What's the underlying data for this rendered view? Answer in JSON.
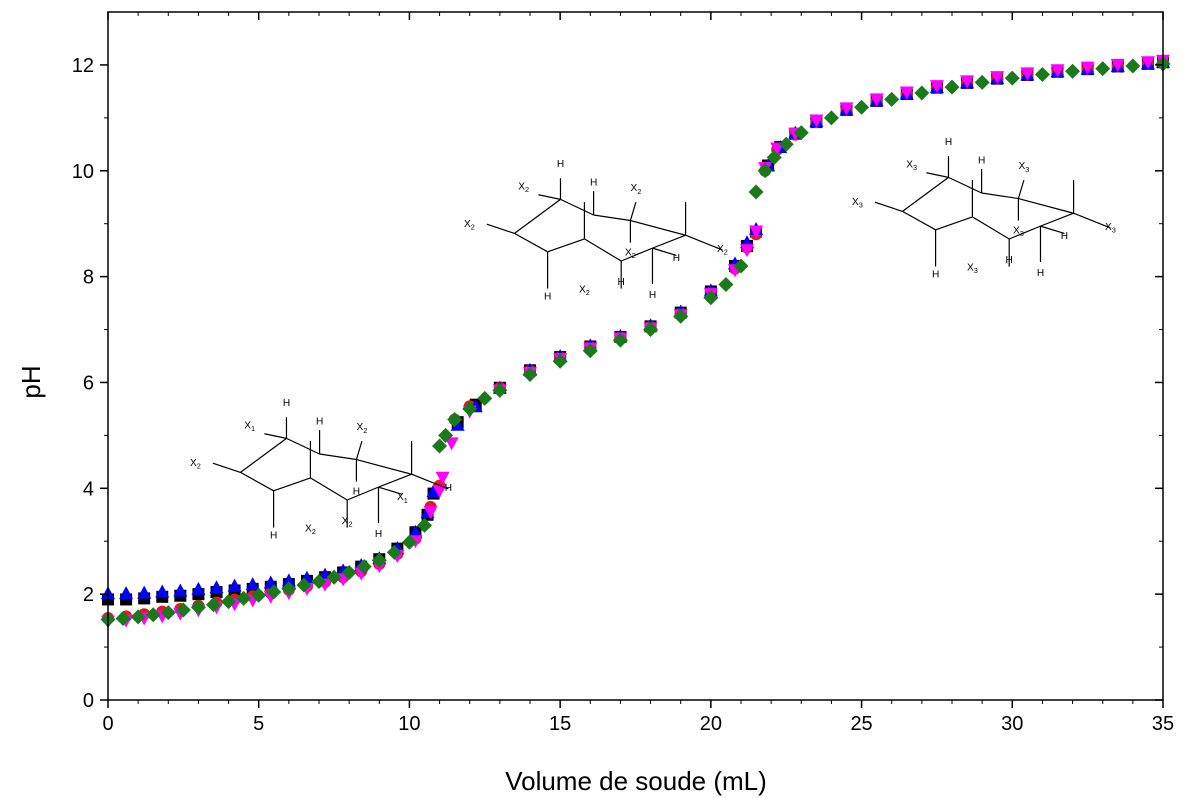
{
  "chart_data": {
    "type": "scatter",
    "xlabel": "Volume de soude (mL)",
    "ylabel": "pH",
    "xlim": [
      0,
      35
    ],
    "ylim": [
      0,
      13
    ],
    "x_ticks": [
      "0",
      "5",
      "10",
      "15",
      "20",
      "25",
      "30",
      "35"
    ],
    "y_ticks": [
      "0",
      "2",
      "4",
      "6",
      "8",
      "10",
      "12"
    ],
    "legend": "none",
    "grid": false,
    "series": [
      {
        "marker": "square",
        "color": "#000000",
        "x": [
          0,
          0.6,
          1.2,
          1.8,
          2.4,
          3,
          3.6,
          4.2,
          4.8,
          5.4,
          6,
          6.6,
          7.2,
          7.8,
          8.4,
          9,
          9.6,
          10.2,
          10.6,
          10.8,
          11.6,
          12.2,
          13,
          14,
          15,
          16,
          17,
          18,
          19,
          20,
          20.8,
          21.2,
          21.5,
          21.9,
          22.3,
          22.8,
          23.5,
          24.5,
          25.5,
          26.5,
          27.5,
          28.5,
          29.5,
          30.5,
          31.5,
          32.5,
          33.5,
          34.5,
          35
        ],
        "y": [
          1.9,
          1.9,
          1.92,
          1.95,
          1.97,
          2.0,
          2.04,
          2.07,
          2.1,
          2.14,
          2.19,
          2.25,
          2.32,
          2.41,
          2.52,
          2.66,
          2.86,
          3.17,
          3.5,
          3.9,
          5.25,
          5.58,
          5.9,
          6.23,
          6.48,
          6.68,
          6.86,
          7.06,
          7.32,
          7.72,
          8.2,
          8.58,
          8.85,
          10.1,
          10.45,
          10.7,
          10.92,
          11.15,
          11.32,
          11.45,
          11.57,
          11.66,
          11.74,
          11.81,
          11.87,
          11.92,
          11.97,
          12.02,
          12.05
        ]
      },
      {
        "marker": "circle",
        "color": "#e31a1c",
        "x": [
          0,
          0.6,
          1.2,
          1.8,
          2.4,
          3,
          3.6,
          4.2,
          4.8,
          5.4,
          6,
          6.6,
          7.2,
          7.8,
          8.4,
          9,
          9.6,
          10.2,
          10.7,
          11,
          11.5,
          12,
          13,
          14,
          15,
          16,
          17,
          18,
          19,
          20,
          20.8,
          21.2,
          21.5,
          21.8,
          22.2,
          22.8,
          23.5,
          24.5,
          25.5,
          26.5,
          27.5,
          28.5,
          29.5,
          30.5,
          31.5,
          32.5,
          33.5,
          34.5,
          35
        ],
        "y": [
          1.55,
          1.58,
          1.62,
          1.67,
          1.72,
          1.78,
          1.84,
          1.9,
          1.96,
          2.02,
          2.08,
          2.15,
          2.23,
          2.32,
          2.43,
          2.57,
          2.76,
          3.05,
          3.65,
          4.05,
          5.3,
          5.55,
          5.9,
          6.22,
          6.47,
          6.67,
          6.85,
          7.05,
          7.3,
          7.7,
          8.15,
          8.55,
          8.8,
          10.0,
          10.4,
          10.68,
          10.92,
          11.15,
          11.32,
          11.45,
          11.57,
          11.66,
          11.74,
          11.81,
          11.87,
          11.92,
          11.97,
          12.02,
          12.05
        ]
      },
      {
        "marker": "triangle-up",
        "color": "#0000ff",
        "x": [
          0,
          0.6,
          1.2,
          1.8,
          2.4,
          3,
          3.6,
          4.2,
          4.8,
          5.4,
          6,
          6.6,
          7.2,
          7.8,
          8.4,
          9,
          9.6,
          10.2,
          10.6,
          10.8,
          11.6,
          12.2,
          13,
          14,
          15,
          16,
          17,
          18,
          19,
          20,
          20.8,
          21.2,
          21.5,
          21.9,
          22.3,
          22.8,
          23.5,
          24.5,
          25.5,
          26.5,
          27.5,
          28.5,
          29.5,
          30.5,
          31.5,
          32.5,
          33.5,
          34.5,
          35
        ],
        "y": [
          2.02,
          2.02,
          2.03,
          2.05,
          2.07,
          2.1,
          2.13,
          2.16,
          2.19,
          2.22,
          2.26,
          2.31,
          2.37,
          2.45,
          2.55,
          2.68,
          2.87,
          3.18,
          3.55,
          3.95,
          5.2,
          5.55,
          5.9,
          6.24,
          6.5,
          6.7,
          6.88,
          7.08,
          7.34,
          7.74,
          8.25,
          8.65,
          8.9,
          10.1,
          10.45,
          10.72,
          10.94,
          11.16,
          11.33,
          11.46,
          11.58,
          11.67,
          11.75,
          11.82,
          11.88,
          11.93,
          11.98,
          12.03,
          12.06
        ]
      },
      {
        "marker": "triangle-down",
        "color": "#ff00ff",
        "x": [
          0,
          0.6,
          1.2,
          1.8,
          2.4,
          3,
          3.6,
          4.2,
          4.8,
          5.4,
          6,
          6.6,
          7.2,
          7.8,
          8.4,
          9,
          9.6,
          10.2,
          10.7,
          11,
          11.1,
          11.4,
          12,
          13,
          14,
          15,
          16,
          17,
          18,
          19,
          20,
          20.8,
          21.2,
          21.5,
          21.8,
          22.2,
          22.8,
          23.5,
          24.5,
          25.5,
          26.5,
          27.5,
          28.5,
          29.5,
          30.5,
          31.5,
          32.5,
          33.5,
          34.5,
          35
        ],
        "y": [
          1.48,
          1.5,
          1.54,
          1.58,
          1.63,
          1.69,
          1.75,
          1.81,
          1.88,
          1.95,
          2.02,
          2.1,
          2.18,
          2.28,
          2.39,
          2.53,
          2.72,
          3.0,
          3.55,
          3.95,
          4.2,
          4.85,
          5.45,
          5.85,
          6.18,
          6.44,
          6.64,
          6.83,
          7.02,
          7.27,
          7.67,
          8.12,
          8.5,
          8.85,
          10.05,
          10.42,
          10.7,
          10.95,
          11.18,
          11.35,
          11.48,
          11.6,
          11.69,
          11.77,
          11.84,
          11.9,
          11.95,
          12.0,
          12.05,
          12.08
        ]
      },
      {
        "marker": "diamond",
        "color": "#1a7a1a",
        "x": [
          0,
          0.5,
          1,
          1.5,
          2,
          2.5,
          3,
          3.5,
          4,
          4.5,
          5,
          5.5,
          6,
          6.5,
          7,
          7.5,
          8,
          8.5,
          9,
          9.5,
          10,
          10.5,
          11,
          11.2,
          11.5,
          12,
          12.5,
          13,
          14,
          15,
          16,
          17,
          18,
          19,
          20,
          20.5,
          21,
          21.5,
          21.8,
          22.1,
          22.5,
          23,
          24,
          25,
          26,
          27,
          28,
          29,
          30,
          31,
          32,
          33,
          34,
          35
        ],
        "y": [
          1.52,
          1.54,
          1.57,
          1.61,
          1.65,
          1.7,
          1.75,
          1.8,
          1.86,
          1.92,
          1.98,
          2.04,
          2.1,
          2.17,
          2.24,
          2.32,
          2.41,
          2.52,
          2.64,
          2.79,
          2.98,
          3.3,
          4.8,
          5.0,
          5.3,
          5.5,
          5.7,
          5.85,
          6.15,
          6.4,
          6.6,
          6.8,
          7.0,
          7.25,
          7.6,
          7.85,
          8.2,
          9.6,
          10.0,
          10.25,
          10.5,
          10.72,
          11.0,
          11.2,
          11.35,
          11.47,
          11.58,
          11.67,
          11.75,
          11.82,
          11.88,
          11.93,
          11.98,
          12.02
        ]
      }
    ],
    "annotations": [
      {
        "name": "molecule-1",
        "labels": [
          {
            "main": "H"
          },
          {
            "main": "H"
          },
          {
            "main": "X",
            "sub": "2"
          },
          {
            "main": "X",
            "sub": "1"
          },
          {
            "main": "X",
            "sub": "2"
          },
          {
            "main": "H"
          },
          {
            "main": "X",
            "sub": "2"
          },
          {
            "main": "X",
            "sub": "2"
          },
          {
            "main": "H"
          },
          {
            "main": "X",
            "sub": "1"
          },
          {
            "main": "H"
          },
          {
            "main": "H"
          }
        ]
      },
      {
        "name": "molecule-2",
        "labels": [
          {
            "main": "H"
          },
          {
            "main": "H"
          },
          {
            "main": "X",
            "sub": "2"
          },
          {
            "main": "X",
            "sub": "2"
          },
          {
            "main": "X",
            "sub": "2"
          },
          {
            "main": "X",
            "sub": "2"
          },
          {
            "main": "H"
          },
          {
            "main": "X",
            "sub": "2"
          },
          {
            "main": "X",
            "sub": "2"
          },
          {
            "main": "H"
          },
          {
            "main": "H"
          },
          {
            "main": "H"
          }
        ]
      },
      {
        "name": "molecule-3",
        "labels": [
          {
            "main": "H"
          },
          {
            "main": "H"
          },
          {
            "main": "X",
            "sub": "3"
          },
          {
            "main": "X",
            "sub": "3"
          },
          {
            "main": "X",
            "sub": "3"
          },
          {
            "main": "X",
            "sub": "3"
          },
          {
            "main": "H"
          },
          {
            "main": "X",
            "sub": "3"
          },
          {
            "main": "X",
            "sub": "3"
          },
          {
            "main": "H"
          },
          {
            "main": "H"
          },
          {
            "main": "H"
          }
        ]
      }
    ]
  }
}
